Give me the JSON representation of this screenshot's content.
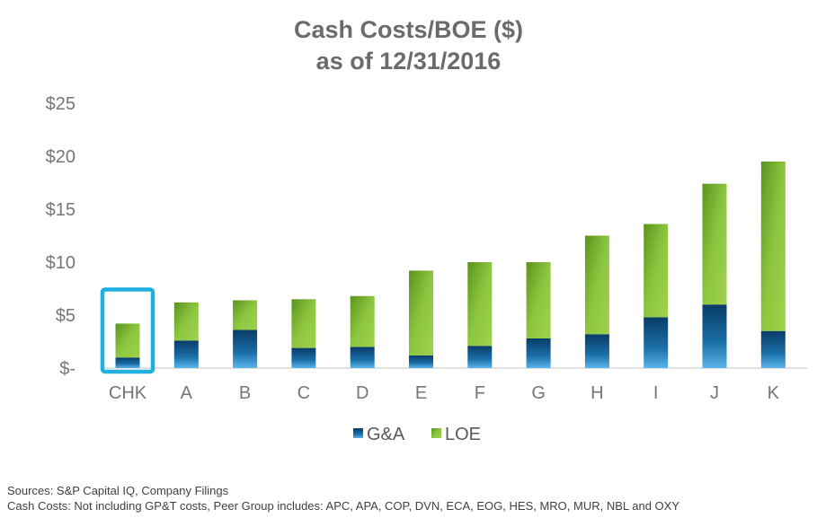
{
  "chart_data": {
    "type": "bar",
    "stacked": true,
    "title": "Cash Costs/BOE ($)",
    "subtitle": "as of 12/31/2016",
    "categories": [
      "CHK",
      "A",
      "B",
      "C",
      "D",
      "E",
      "F",
      "G",
      "H",
      "I",
      "J",
      "K"
    ],
    "series": [
      {
        "name": "G&A",
        "values": [
          1.0,
          2.6,
          3.6,
          1.9,
          2.0,
          1.2,
          2.1,
          2.8,
          3.2,
          4.8,
          6.0,
          3.5
        ],
        "color": "#0b4d7e"
      },
      {
        "name": "LOE",
        "values": [
          3.2,
          3.6,
          2.8,
          4.6,
          4.8,
          8.0,
          7.9,
          7.2,
          9.3,
          8.8,
          11.4,
          16.0
        ],
        "color": "#7ab52a"
      }
    ],
    "ylim": [
      0,
      25
    ],
    "yticks": [
      0,
      5,
      10,
      15,
      20,
      25
    ],
    "ytick_labels": [
      "$-",
      "$5",
      "$10",
      "$15",
      "$20",
      "$25"
    ],
    "legend": "bottom-center",
    "highlight": {
      "category": "CHK",
      "color": "#1fb0e0"
    },
    "grid": false,
    "xlabel": "",
    "ylabel": ""
  },
  "footer": {
    "sources": "Sources: S&P Capital IQ, Company Filings",
    "note": "Cash Costs:  Not including GP&T costs, Peer Group includes:  APC, APA, COP, DVN, ECA, EOG, HES, MRO, MUR, NBL and OXY"
  }
}
